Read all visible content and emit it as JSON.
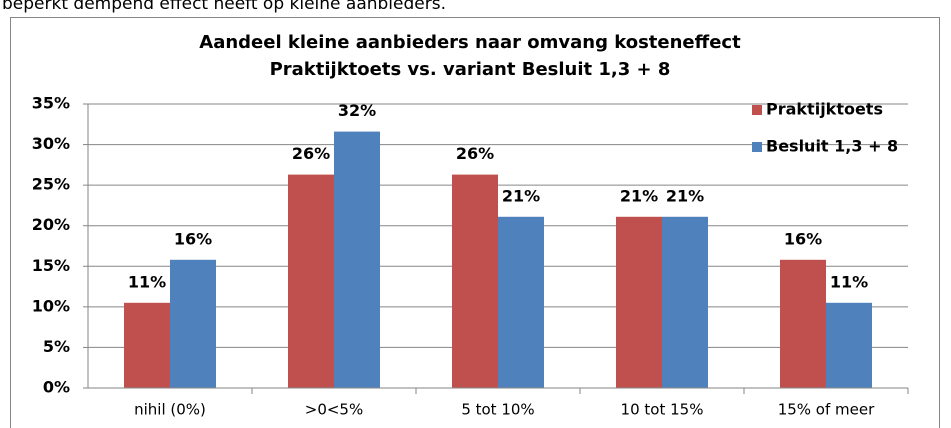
{
  "intro_text": "beperkt dempend effect heeft op kleine aanbieders.",
  "chart_data": {
    "type": "bar",
    "title": "Aandeel kleine aanbieders naar omvang kosteneffect",
    "subtitle": "Praktijktoets vs. variant Besluit  1,3 + 8",
    "categories": [
      "nihil (0%)",
      ">0<5%",
      "5 tot 10%",
      "10 tot 15%",
      "15% of meer"
    ],
    "series": [
      {
        "name": "Praktijktoets",
        "color": "#c0504d",
        "values": [
          10.5,
          26.3,
          26.3,
          21.1,
          15.8
        ],
        "value_labels": [
          "11%",
          "26%",
          "26%",
          "21%",
          "16%"
        ]
      },
      {
        "name": "Besluit 1,3 + 8",
        "color": "#4f81bd",
        "values": [
          15.8,
          31.6,
          21.1,
          21.1,
          10.5
        ],
        "value_labels": [
          "16%",
          "32%",
          "21%",
          "21%",
          "11%"
        ]
      }
    ],
    "ylim": [
      0,
      35
    ],
    "yticks": [
      {
        "value": 0,
        "label": "0%"
      },
      {
        "value": 5,
        "label": "5%"
      },
      {
        "value": 10,
        "label": "10%"
      },
      {
        "value": 15,
        "label": "15%"
      },
      {
        "value": 20,
        "label": "20%"
      },
      {
        "value": 25,
        "label": "25%"
      },
      {
        "value": 30,
        "label": "30%"
      },
      {
        "value": 35,
        "label": "35%"
      }
    ],
    "grid": true,
    "legend": "right"
  }
}
